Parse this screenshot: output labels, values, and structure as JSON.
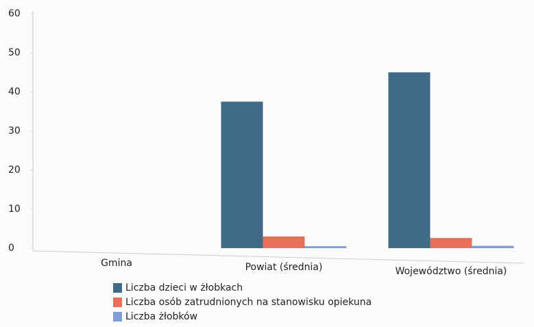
{
  "chart_data": {
    "type": "bar",
    "categories": [
      "Gmina",
      "Powiat (średnia)",
      "Województwo (średnia)"
    ],
    "series": [
      {
        "name": "Liczba dzieci w żłobkach",
        "color": "#3f6b88",
        "values": [
          0,
          37.5,
          45
        ]
      },
      {
        "name": "Liczba osób zatrudnionych na stanowisku opiekuna",
        "color": "#e8705a",
        "values": [
          0,
          3,
          2.6
        ]
      },
      {
        "name": "Liczba żłobków",
        "color": "#7f9ed6",
        "values": [
          0,
          0.5,
          0.6
        ]
      }
    ],
    "ylim": [
      0,
      60
    ],
    "yticks": [
      0,
      10,
      20,
      30,
      40,
      50,
      60
    ],
    "grid": false
  }
}
